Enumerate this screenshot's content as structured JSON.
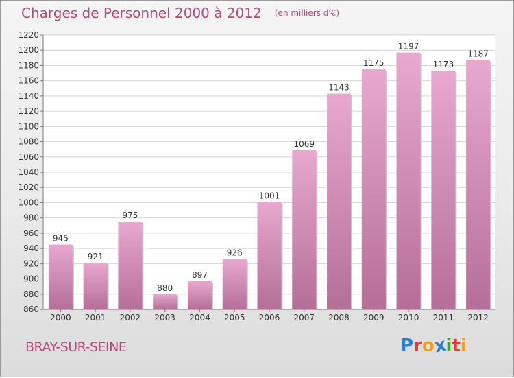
{
  "header": {
    "title": "Charges de Personnel 2000 à 2012",
    "subtitle": "(en milliers d'€)"
  },
  "footer": {
    "commune": "BRAY-SUR-SEINE",
    "brand": "Proxiti",
    "brand_colors": [
      "#2e7fd0",
      "#e03a3a",
      "#f0a020",
      "#2e7fd0",
      "#3aa830",
      "#e03a3a",
      "#f0a020"
    ]
  },
  "colors": {
    "bar_top": "#e8a8cf",
    "bar_bottom": "#b46f98",
    "accent": "#b5487a"
  },
  "chart_data": {
    "type": "bar",
    "title": "Charges de Personnel 2000 à 2012",
    "subtitle": "(en milliers d'€)",
    "categories": [
      "2000",
      "2001",
      "2002",
      "2003",
      "2004",
      "2005",
      "2006",
      "2007",
      "2008",
      "2009",
      "2010",
      "2011",
      "2012"
    ],
    "values": [
      945,
      921,
      975,
      880,
      897,
      926,
      1001,
      1069,
      1143,
      1175,
      1197,
      1173,
      1187
    ],
    "ylim": [
      860,
      1220
    ],
    "yticks": [
      860,
      880,
      900,
      920,
      940,
      960,
      980,
      1000,
      1020,
      1040,
      1060,
      1080,
      1100,
      1120,
      1140,
      1160,
      1180,
      1200,
      1220
    ],
    "xlabel": "",
    "ylabel": "",
    "grid": true,
    "data_labels": true
  }
}
